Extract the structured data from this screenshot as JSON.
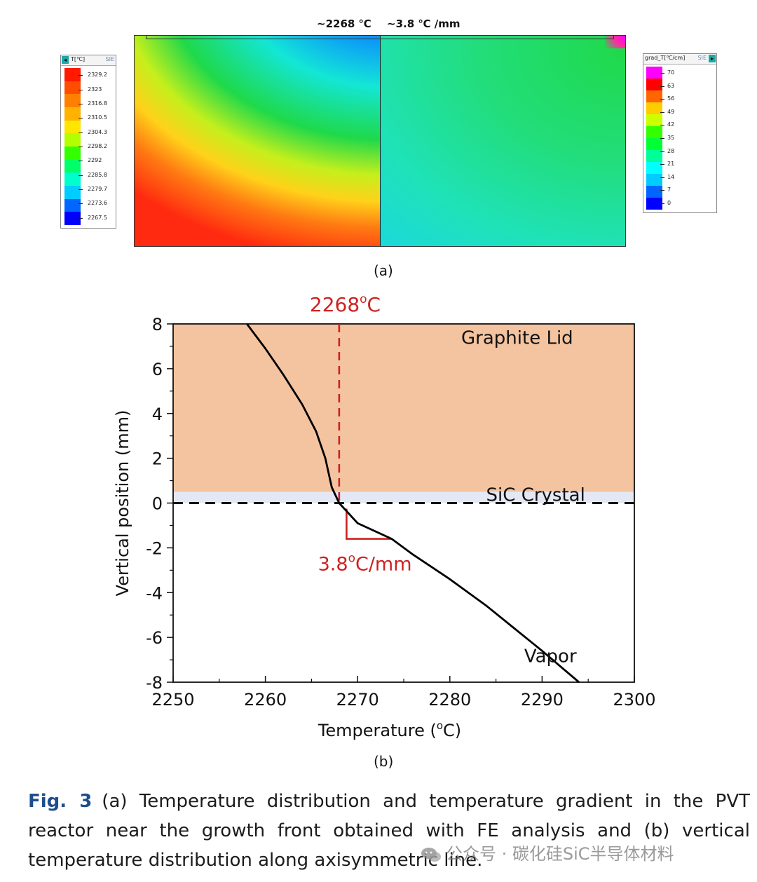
{
  "panel_a": {
    "left_note": "~2268 ℃",
    "right_note": "~3.8 ℃ /mm",
    "label": "(a)",
    "legend_temp": {
      "title": "T[℃]",
      "tag": "SIE",
      "ticks": [
        "2329.2",
        "2323",
        "2316.8",
        "2310.5",
        "2304.3",
        "2298.2",
        "2292",
        "2285.8",
        "2279.7",
        "2273.6",
        "2267.5"
      ],
      "colors": [
        "#ff1a00",
        "#ff4d00",
        "#ff8000",
        "#ffb300",
        "#ffe600",
        "#b3ff00",
        "#33ff00",
        "#00ff66",
        "#00ffcc",
        "#00ccff",
        "#0066ff",
        "#0000ff"
      ]
    },
    "legend_grad": {
      "title": "grad_T[℃/cm]",
      "tag": "SIE",
      "ticks": [
        "70",
        "63",
        "56",
        "49",
        "42",
        "35",
        "28",
        "21",
        "14",
        "7",
        "0"
      ],
      "colors": [
        "#ff00ff",
        "#ff0000",
        "#ff6600",
        "#ffcc00",
        "#ccff00",
        "#33ff00",
        "#00ff33",
        "#00ff99",
        "#00ffff",
        "#00ccff",
        "#0066ff",
        "#0000ff"
      ]
    }
  },
  "panel_b": {
    "label": "(b)"
  },
  "chart_data": {
    "type": "line",
    "xlabel": "Temperature (°C)",
    "xlabel_main": "Temperature (",
    "xlabel_sup": "o",
    "xlabel_end": "C)",
    "ylabel": "Vertical position (mm)",
    "xlim": [
      2250,
      2300
    ],
    "ylim": [
      -8,
      8
    ],
    "xticks": [
      2250,
      2260,
      2270,
      2280,
      2290,
      2300
    ],
    "yticks": [
      8,
      6,
      4,
      2,
      0,
      -2,
      -4,
      -6,
      -8
    ],
    "grid": false,
    "regions": [
      {
        "label": "Graphite Lid",
        "y_from": 0.5,
        "y_to": 8,
        "color": "#f4c4a0"
      },
      {
        "label": "SiC Crystal",
        "y_from": 0,
        "y_to": 0.5,
        "color": "#e4e8f4"
      },
      {
        "label": "Vapor",
        "y_from": -8,
        "y_to": 0,
        "color": "#ffffff"
      }
    ],
    "series": [
      {
        "color": "#000000",
        "x": [
          2258.0,
          2260.0,
          2262.0,
          2264.0,
          2265.5,
          2266.5,
          2267.2,
          2268.0,
          2270.0,
          2273.7,
          2276.0,
          2280.0,
          2284.0,
          2287.0,
          2290.0,
          2292.0,
          2294.0
        ],
        "y": [
          8.0,
          6.9,
          5.7,
          4.4,
          3.2,
          2.0,
          0.7,
          0.0,
          -0.9,
          -1.6,
          -2.3,
          -3.4,
          -4.6,
          -5.6,
          -6.6,
          -7.3,
          -8.0
        ]
      }
    ],
    "annotations": {
      "temp_marker": {
        "x": 2268,
        "label": "2268",
        "sup": "o",
        "unit": "C",
        "color": "#cc2222"
      },
      "zero_line": {
        "y": 0
      },
      "slope_marker": {
        "label": "3.8",
        "sup": "o",
        "unit": "C/mm",
        "color": "#cc2222",
        "corner": [
          2268.8,
          -1.6
        ],
        "end": [
          2273.7,
          -1.6
        ],
        "start": [
          2268.8,
          -0.25
        ]
      }
    }
  },
  "caption": {
    "fig_label": "Fig. 3",
    "text": "(a) Temperature distribution and temperature gradient in the PVT reactor near the growth front obtained with FE analysis and (b) vertical temperature distribution along axisymmetric line."
  },
  "watermark": {
    "text": "公众号 · 碳化硅SiC半导体材料"
  }
}
